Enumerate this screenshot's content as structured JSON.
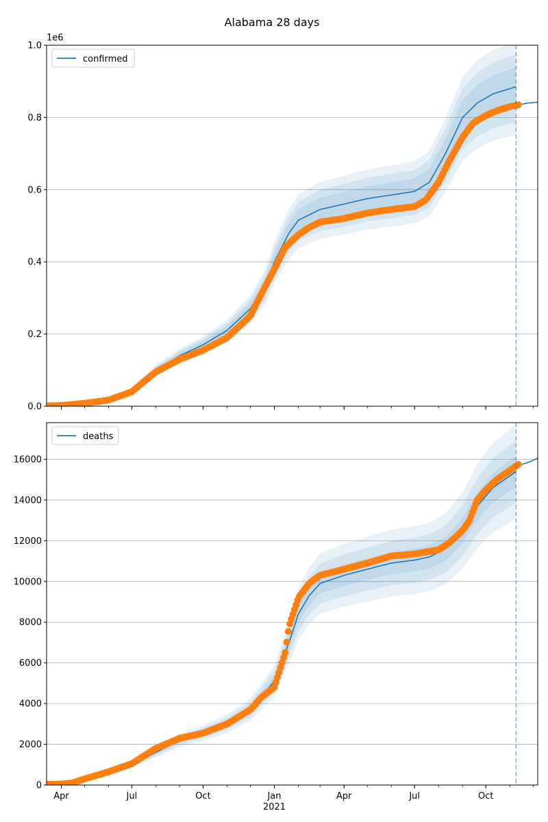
{
  "title": "Alabama 28 days",
  "colors": {
    "model": "#1f77b4",
    "observed": "#ff7f0e",
    "band": "#1f77b4",
    "grid": "#b0b0b0",
    "forecast_line": "#1f77b4"
  },
  "x_axis": {
    "ticks": [
      {
        "date": "2020-04-01",
        "label": "Apr"
      },
      {
        "date": "2020-07-01",
        "label": "Jul"
      },
      {
        "date": "2020-10-01",
        "label": "Oct"
      },
      {
        "date": "2021-01-01",
        "label": "Jan",
        "sublabel": "2021"
      },
      {
        "date": "2021-04-01",
        "label": "Apr"
      },
      {
        "date": "2021-07-01",
        "label": "Jul"
      },
      {
        "date": "2021-10-01",
        "label": "Oct"
      }
    ]
  },
  "chart_data": [
    {
      "type": "line",
      "legend": "confirmed",
      "legend_position": "top-left",
      "axis_multiplier": "1e6",
      "xlim": [
        "2020-03-13",
        "2021-12-07"
      ],
      "ylim": [
        0,
        1.0
      ],
      "yticks": [
        0.0,
        0.2,
        0.4,
        0.6,
        0.8,
        1.0
      ],
      "ytick_labels": [
        "0.0",
        "0.2",
        "0.4",
        "0.6",
        "0.8",
        "1.0"
      ],
      "grid": "horizontal",
      "forecast_start": "2021-11-09",
      "model": {
        "x": [
          "2020-03-13",
          "2020-05-01",
          "2020-06-15",
          "2020-07-01",
          "2020-08-01",
          "2020-09-01",
          "2020-10-01",
          "2020-11-01",
          "2020-12-01",
          "2020-12-20",
          "2021-01-01",
          "2021-01-20",
          "2021-02-01",
          "2021-03-01",
          "2021-04-01",
          "2021-05-01",
          "2021-06-01",
          "2021-07-01",
          "2021-07-20",
          "2021-08-10",
          "2021-09-01",
          "2021-09-20",
          "2021-10-10",
          "2021-10-25",
          "2021-11-09"
        ],
        "y": [
          0.002,
          0.012,
          0.03,
          0.045,
          0.1,
          0.14,
          0.17,
          0.21,
          0.27,
          0.33,
          0.4,
          0.48,
          0.515,
          0.545,
          0.56,
          0.575,
          0.585,
          0.595,
          0.62,
          0.7,
          0.8,
          0.84,
          0.865,
          0.875,
          0.885
        ]
      },
      "forecast": {
        "x": [
          "2021-11-12",
          "2021-11-25",
          "2021-12-07"
        ],
        "y": [
          0.835,
          0.84,
          0.842
        ]
      },
      "observed": {
        "x": [
          "2020-03-13",
          "2020-04-01",
          "2020-05-01",
          "2020-06-01",
          "2020-07-01",
          "2020-07-15",
          "2020-08-01",
          "2020-09-01",
          "2020-10-01",
          "2020-11-01",
          "2020-12-01",
          "2020-12-15",
          "2021-01-01",
          "2021-01-15",
          "2021-02-01",
          "2021-02-15",
          "2021-03-01",
          "2021-04-01",
          "2021-05-01",
          "2021-06-01",
          "2021-07-01",
          "2021-07-15",
          "2021-08-01",
          "2021-08-15",
          "2021-09-01",
          "2021-09-15",
          "2021-10-01",
          "2021-10-15",
          "2021-11-01",
          "2021-11-12"
        ],
        "y": [
          0.001,
          0.002,
          0.008,
          0.017,
          0.04,
          0.065,
          0.095,
          0.13,
          0.155,
          0.19,
          0.25,
          0.31,
          0.38,
          0.44,
          0.475,
          0.495,
          0.51,
          0.52,
          0.535,
          0.545,
          0.553,
          0.57,
          0.62,
          0.68,
          0.745,
          0.785,
          0.805,
          0.818,
          0.83,
          0.835
        ]
      },
      "bands": [
        {
          "lower_factor": 0.93,
          "upper_factor": 1.06
        },
        {
          "lower_factor": 0.89,
          "upper_factor": 1.1
        },
        {
          "lower_factor": 0.85,
          "upper_factor": 1.14
        }
      ]
    },
    {
      "type": "line",
      "legend": "deaths",
      "legend_position": "top-left",
      "xlim": [
        "2020-03-13",
        "2021-12-07"
      ],
      "ylim": [
        0,
        17800
      ],
      "yticks": [
        0,
        2000,
        4000,
        6000,
        8000,
        10000,
        12000,
        14000,
        16000
      ],
      "ytick_labels": [
        "0",
        "2000",
        "4000",
        "6000",
        "8000",
        "10000",
        "12000",
        "14000",
        "16000"
      ],
      "grid": "horizontal",
      "forecast_start": "2021-11-09",
      "model": {
        "x": [
          "2020-03-13",
          "2020-04-01",
          "2020-05-01",
          "2020-06-01",
          "2020-07-01",
          "2020-08-01",
          "2020-09-01",
          "2020-10-01",
          "2020-11-01",
          "2020-12-01",
          "2021-01-01",
          "2021-01-20",
          "2021-02-01",
          "2021-02-15",
          "2021-03-01",
          "2021-04-01",
          "2021-05-01",
          "2021-06-01",
          "2021-07-01",
          "2021-07-20",
          "2021-08-10",
          "2021-09-01",
          "2021-09-20",
          "2021-10-10",
          "2021-10-25",
          "2021-11-09"
        ],
        "y": [
          60,
          80,
          300,
          650,
          1000,
          1600,
          2200,
          2550,
          3000,
          3700,
          5100,
          7000,
          8400,
          9300,
          9900,
          10300,
          10600,
          10900,
          11050,
          11200,
          11600,
          12500,
          13700,
          14600,
          15000,
          15400
        ]
      },
      "forecast": {
        "x": [
          "2021-11-12",
          "2021-11-25",
          "2021-12-07"
        ],
        "y": [
          15700,
          15850,
          16050
        ]
      },
      "observed": {
        "x": [
          "2020-03-13",
          "2020-04-01",
          "2020-04-15",
          "2020-05-01",
          "2020-06-01",
          "2020-07-01",
          "2020-08-01",
          "2020-09-01",
          "2020-10-01",
          "2020-11-01",
          "2020-12-01",
          "2020-12-15",
          "2021-01-01",
          "2021-01-15",
          "2021-01-20",
          "2021-02-01",
          "2021-02-15",
          "2021-03-01",
          "2021-04-01",
          "2021-05-01",
          "2021-06-01",
          "2021-07-01",
          "2021-08-01",
          "2021-08-15",
          "2021-09-01",
          "2021-09-10",
          "2021-09-20",
          "2021-10-01",
          "2021-10-15",
          "2021-11-01",
          "2021-11-12"
        ],
        "y": [
          30,
          50,
          100,
          300,
          650,
          1050,
          1800,
          2300,
          2550,
          3000,
          3700,
          4300,
          4800,
          6500,
          7800,
          9200,
          9900,
          10300,
          10600,
          10900,
          11250,
          11350,
          11550,
          11900,
          12500,
          13000,
          14000,
          14500,
          15000,
          15450,
          15750
        ]
      },
      "bands": [
        {
          "lower_factor": 0.95,
          "upper_factor": 1.05
        },
        {
          "lower_factor": 0.9,
          "upper_factor": 1.1
        },
        {
          "lower_factor": 0.85,
          "upper_factor": 1.15
        }
      ]
    }
  ]
}
